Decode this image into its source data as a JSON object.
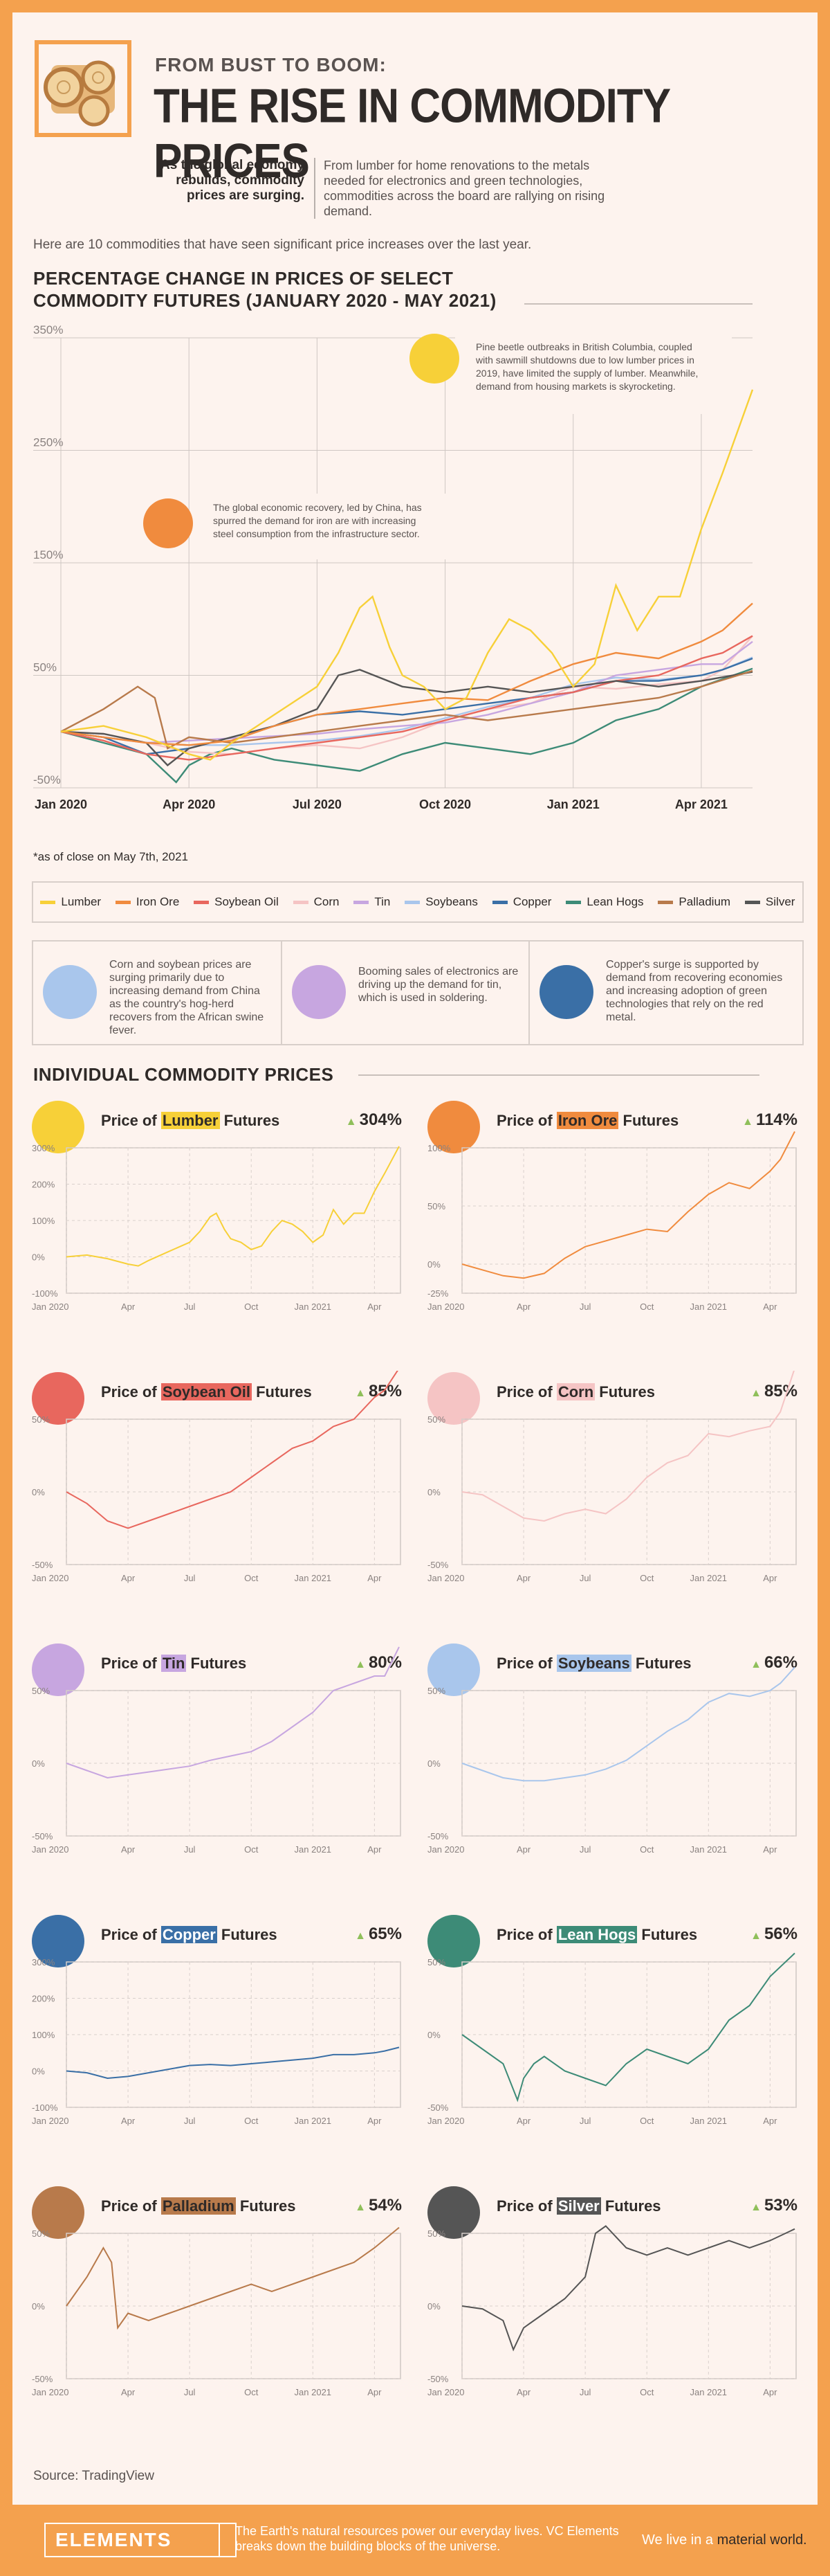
{
  "header": {
    "subtitle": "FROM BUST TO BOOM:",
    "title": "THE RISE IN COMMODITY PRICES"
  },
  "intro": {
    "left": "As the global economy rebuilds, commodity prices are surging.",
    "right": "From lumber for home renovations to the metals needed for electronics and green technologies, commodities across the board are rallying on rising demand.",
    "line": "Here are 10 commodities that have seen significant price increases over the last year."
  },
  "main_chart": {
    "title_line1": "PERCENTAGE CHANGE IN PRICES OF SELECT",
    "title_line2": "COMMODITY FUTURES (JANUARY 2020 - MAY 2021)",
    "note": "*as of close on May 7th, 2021",
    "ann_lumber": "Pine beetle outbreaks in British Columbia, coupled with sawmill shutdowns due to low lumber prices in 2019, have limited the supply of lumber. Meanwhile, demand from housing markets is skyrocketing.",
    "ann_iron": "The global economic recovery, led by China, has spurred the demand for iron are with increasing steel consumption from the infrastructure sector."
  },
  "callouts": [
    {
      "text": "Corn and soybean prices are surging primarily due to increasing demand from China as the country's hog-herd recovers from the African swine fever."
    },
    {
      "text": "Booming sales of electronics are driving up the demand for tin, which is used in soldering."
    },
    {
      "text": "Copper's surge is supported by demand from recovering economies and increasing adoption of green technologies that rely on the red metal."
    }
  ],
  "individual": {
    "title": "INDIVIDUAL COMMODITY PRICES",
    "price_of": "Price of",
    "futures": "Futures"
  },
  "colors": {
    "Lumber": "#f7d038",
    "Iron Ore": "#f08b3e",
    "Soybean Oil": "#e8675e",
    "Corn": "#f5c4c4",
    "Tin": "#c7a6e0",
    "Soybeans": "#a9c6ec",
    "Copper": "#3a6fa6",
    "Lean Hogs": "#3d8b77",
    "Palladium": "#b87a4b",
    "Silver": "#555555"
  },
  "chart_data": {
    "type": "line",
    "x_ticks": [
      "Jan 2020",
      "Apr 2020",
      "Jul 2020",
      "Oct 2020",
      "Jan 2021",
      "Apr 2021"
    ],
    "x_months": [
      0,
      3,
      6,
      9,
      12,
      15
    ],
    "x_range_months": [
      0,
      16.2
    ],
    "y_ticks": [
      "350%",
      "250%",
      "150%",
      "50%",
      "-50%"
    ],
    "ylim": [
      -50,
      350
    ],
    "series": [
      {
        "name": "Lumber",
        "x": [
          0,
          1,
          2,
          3,
          3.5,
          4,
          5,
          6,
          6.5,
          7,
          7.3,
          7.7,
          8,
          8.5,
          9,
          9.5,
          10,
          10.5,
          11,
          11.5,
          12,
          12.5,
          13,
          13.5,
          14,
          14.5,
          15,
          15.5,
          16.2
        ],
        "y": [
          0,
          5,
          -5,
          -20,
          -25,
          -10,
          15,
          40,
          70,
          110,
          120,
          75,
          50,
          40,
          20,
          30,
          70,
          100,
          90,
          70,
          40,
          60,
          130,
          90,
          120,
          120,
          180,
          230,
          304
        ]
      },
      {
        "name": "Iron Ore",
        "x": [
          0,
          1,
          2,
          3,
          4,
          5,
          6,
          7,
          8,
          9,
          10,
          11,
          12,
          13,
          14,
          15,
          15.5,
          16.2
        ],
        "y": [
          0,
          -5,
          -10,
          -12,
          -8,
          5,
          15,
          20,
          25,
          30,
          28,
          45,
          60,
          70,
          65,
          80,
          90,
          114
        ]
      },
      {
        "name": "Soybean Oil",
        "x": [
          0,
          1,
          2,
          3,
          4,
          5,
          6,
          7,
          8,
          9,
          10,
          11,
          12,
          13,
          14,
          15,
          15.5,
          16.2
        ],
        "y": [
          0,
          -8,
          -20,
          -25,
          -20,
          -15,
          -10,
          -5,
          0,
          10,
          20,
          30,
          35,
          45,
          50,
          65,
          70,
          85
        ]
      },
      {
        "name": "Corn",
        "x": [
          0,
          1,
          2,
          3,
          4,
          5,
          6,
          7,
          8,
          9,
          10,
          11,
          12,
          13,
          14,
          15,
          15.5,
          16.2
        ],
        "y": [
          0,
          -2,
          -10,
          -18,
          -20,
          -15,
          -12,
          -15,
          -5,
          10,
          20,
          25,
          40,
          38,
          42,
          45,
          55,
          85
        ]
      },
      {
        "name": "Tin",
        "x": [
          0,
          1,
          2,
          3,
          4,
          5,
          6,
          7,
          8,
          9,
          10,
          11,
          12,
          13,
          14,
          15,
          15.5,
          16.2
        ],
        "y": [
          0,
          -5,
          -10,
          -8,
          -6,
          -4,
          -2,
          2,
          5,
          8,
          15,
          25,
          35,
          50,
          55,
          60,
          60,
          80
        ]
      },
      {
        "name": "Soybeans",
        "x": [
          0,
          1,
          2,
          3,
          4,
          5,
          6,
          7,
          8,
          9,
          10,
          11,
          12,
          13,
          14,
          15,
          15.5,
          16.2
        ],
        "y": [
          0,
          -5,
          -10,
          -12,
          -12,
          -10,
          -8,
          -4,
          2,
          12,
          22,
          30,
          42,
          48,
          46,
          50,
          55,
          66
        ]
      },
      {
        "name": "Copper",
        "x": [
          0,
          1,
          2,
          3,
          4,
          5,
          6,
          7,
          8,
          9,
          10,
          11,
          12,
          13,
          14,
          15,
          15.5,
          16.2
        ],
        "y": [
          0,
          -5,
          -20,
          -15,
          -5,
          5,
          15,
          18,
          15,
          20,
          25,
          30,
          35,
          45,
          45,
          50,
          55,
          65
        ]
      },
      {
        "name": "Lean Hogs",
        "x": [
          0,
          1,
          2,
          2.7,
          3,
          3.5,
          4,
          5,
          6,
          7,
          8,
          9,
          10,
          11,
          12,
          13,
          14,
          15,
          16.2
        ],
        "y": [
          0,
          -10,
          -20,
          -45,
          -30,
          -20,
          -15,
          -25,
          -30,
          -35,
          -20,
          -10,
          -15,
          -20,
          -10,
          10,
          20,
          40,
          56
        ]
      },
      {
        "name": "Palladium",
        "x": [
          0,
          1,
          1.8,
          2.2,
          2.5,
          3,
          4,
          5,
          6,
          7,
          8,
          9,
          10,
          11,
          12,
          13,
          14,
          15,
          16.2
        ],
        "y": [
          0,
          20,
          40,
          30,
          -15,
          -5,
          -10,
          -5,
          0,
          5,
          10,
          15,
          10,
          15,
          20,
          25,
          30,
          40,
          54
        ]
      },
      {
        "name": "Silver",
        "x": [
          0,
          1,
          2,
          2.5,
          3,
          4,
          5,
          6,
          6.5,
          7,
          8,
          9,
          10,
          11,
          12,
          13,
          14,
          15,
          16.2
        ],
        "y": [
          0,
          -2,
          -10,
          -30,
          -15,
          -5,
          5,
          20,
          50,
          55,
          40,
          35,
          40,
          35,
          40,
          45,
          40,
          45,
          53
        ]
      }
    ]
  },
  "panels": [
    {
      "name": "Lumber",
      "pct": "304%",
      "yticks": [
        300,
        200,
        100,
        0,
        -100
      ],
      "ylabels": [
        "300%",
        "200%",
        "100%",
        "0%",
        "-100%"
      ]
    },
    {
      "name": "Iron Ore",
      "pct": "114%",
      "yticks": [
        100,
        50,
        0,
        -25
      ],
      "ylabels": [
        "100%",
        "50%",
        "0%",
        "-25%"
      ]
    },
    {
      "name": "Soybean Oil",
      "pct": "85%",
      "yticks": [
        50,
        0,
        -50
      ],
      "ylabels": [
        "50%",
        "0%",
        "-50%"
      ]
    },
    {
      "name": "Corn",
      "pct": "85%",
      "yticks": [
        50,
        0,
        -50
      ],
      "ylabels": [
        "50%",
        "0%",
        "-50%"
      ]
    },
    {
      "name": "Tin",
      "pct": "80%",
      "yticks": [
        50,
        0,
        -50
      ],
      "ylabels": [
        "50%",
        "0%",
        "-50%"
      ]
    },
    {
      "name": "Soybeans",
      "pct": "66%",
      "yticks": [
        50,
        0,
        -50
      ],
      "ylabels": [
        "50%",
        "0%",
        "-50%"
      ]
    },
    {
      "name": "Copper",
      "pct": "65%",
      "yticks": [
        300,
        200,
        100,
        0,
        -100
      ],
      "ylabels": [
        "300%",
        "200%",
        "100%",
        "0%",
        "-100%"
      ]
    },
    {
      "name": "Lean Hogs",
      "pct": "56%",
      "yticks": [
        50,
        0,
        -50
      ],
      "ylabels": [
        "50%",
        "0%",
        "-50%"
      ]
    },
    {
      "name": "Palladium",
      "pct": "54%",
      "yticks": [
        50,
        0,
        -50
      ],
      "ylabels": [
        "50%",
        "0%",
        "-50%"
      ]
    },
    {
      "name": "Silver",
      "pct": "53%",
      "yticks": [
        50,
        0,
        -50
      ],
      "ylabels": [
        "50%",
        "0%",
        "-50%"
      ]
    }
  ],
  "panel_x_ticks": [
    "Jan 2020",
    "Apr",
    "Jul",
    "Oct",
    "Jan 2021",
    "Apr"
  ],
  "source": "Source: TradingView",
  "footer": {
    "brand": "ELEMENTS",
    "text": "The Earth's natural resources power our everyday lives. VC Elements breaks down the building blocks of the universe.",
    "right_pre": "We live in a ",
    "right_strong": "material world."
  }
}
